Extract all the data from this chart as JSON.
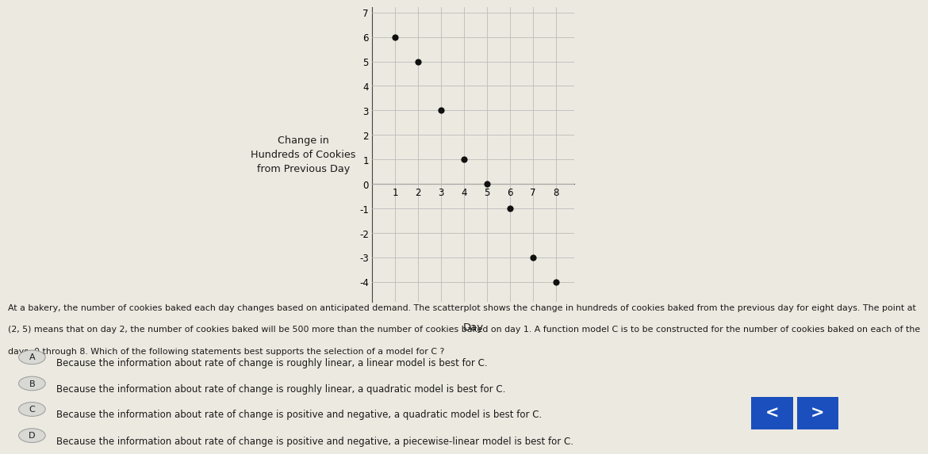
{
  "scatter_x": [
    1,
    2,
    3,
    4,
    5,
    6,
    7,
    8
  ],
  "scatter_y": [
    6,
    5,
    3,
    1,
    0,
    -1,
    -3,
    -4
  ],
  "xlabel": "Day",
  "ylabel": "Change in\nHundreds of Cookies\nfrom Previous Day",
  "xlim": [
    0.0,
    8.8
  ],
  "ylim": [
    -4.8,
    7.2
  ],
  "xticks": [
    1,
    2,
    3,
    4,
    5,
    6,
    7,
    8
  ],
  "yticks": [
    -4,
    -3,
    -2,
    -1,
    0,
    1,
    2,
    3,
    4,
    5,
    6,
    7
  ],
  "point_color": "#111111",
  "point_size": 35,
  "grid_color": "#bbbbbb",
  "bg_color": "#ece9e0",
  "plot_bg": "#ece9e0",
  "answer_A": "Because the information about rate of change is roughly linear, a linear model is best for C.",
  "answer_B": "Because the information about rate of change is roughly linear, a quadratic model is best for C.",
  "answer_C": "Because the information about rate of change is positive and negative, a quadratic model is best for C.",
  "answer_D": "Because the information about rate of change is positive and negative, a piecewise-linear model is best for C.",
  "para_line1": "At a bakery, the number of cookies baked each day changes based on anticipated demand. The scatterplot shows the change in hundreds of cookies baked from the previous day for eight days. The point at",
  "para_line2": "(2, 5) means that on day 2, the number of cookies baked will be 500 more than the number of cookies baked on day 1. A function model C is to be constructed for the number of cookies baked on each of the",
  "para_line3": "days, 0 through 8. Which of the following statements best supports the selection of a model for C ?",
  "label_A": "A",
  "label_B": "B",
  "label_C": "C",
  "label_D": "D",
  "nav_color": "#1a4fbd"
}
